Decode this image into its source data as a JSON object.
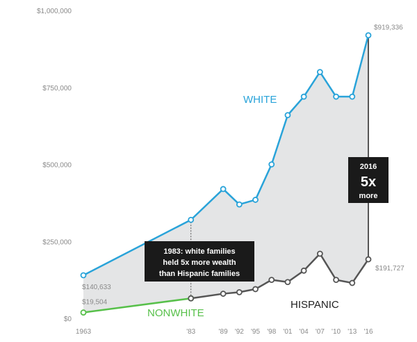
{
  "chart_data": {
    "type": "line",
    "title": "",
    "xlabel": "",
    "ylabel": "",
    "x": [
      1963,
      1983,
      1989,
      1992,
      1995,
      1998,
      2001,
      2004,
      2007,
      2010,
      2013,
      2016
    ],
    "x_tick_labels": [
      "1963",
      "'83",
      "'89",
      "'92",
      "'95",
      "'98",
      "'01",
      "'04",
      "'07",
      "'10",
      "'13",
      "'16"
    ],
    "y_ticks": [
      0,
      250000,
      500000,
      750000,
      1000000
    ],
    "y_tick_labels": [
      "$0",
      "$250,000",
      "$500,000",
      "$750,000",
      "$1,000,000"
    ],
    "ylim": [
      0,
      1000000
    ],
    "grid": false,
    "series": [
      {
        "name": "WHITE",
        "color": "#29a3d9",
        "values": [
          140000,
          320000,
          420000,
          370000,
          385000,
          500000,
          660000,
          720000,
          800000,
          720000,
          720000,
          919336
        ]
      },
      {
        "name": "NONWHITE",
        "color": "#57c04a",
        "values": [
          19000,
          65000,
          null,
          null,
          null,
          null,
          null,
          null,
          null,
          null,
          null,
          null
        ]
      },
      {
        "name": "HISPANIC",
        "color": "#555555",
        "values": [
          null,
          65000,
          80000,
          85000,
          95000,
          125000,
          118000,
          155000,
          210000,
          125000,
          115000,
          191727
        ]
      }
    ],
    "point_labels": {
      "white_start": "$140,633",
      "nonwhite_start": "$19,504",
      "white_end": "$919,336",
      "hispanic_end": "$191,727"
    },
    "annotations": {
      "box1_lines": [
        "1983: white families",
        "held 5x more wealth",
        "than Hispanic families"
      ],
      "box2_year": "2016",
      "box2_big": "5x",
      "box2_word": "more"
    }
  }
}
